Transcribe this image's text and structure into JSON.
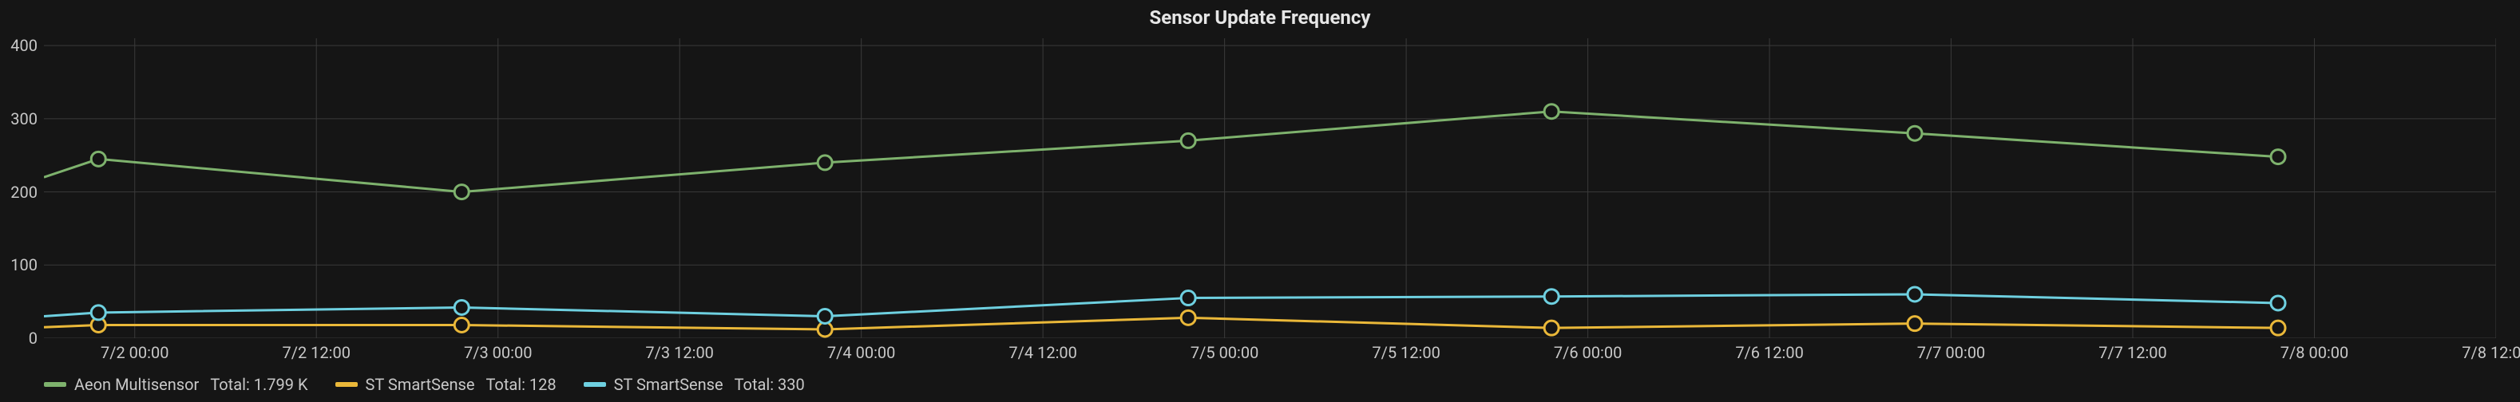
{
  "chart": {
    "type": "line",
    "title": "Sensor Update Frequency",
    "title_fontsize": 24,
    "title_fontweight": "700",
    "title_color": "#e6e6e6",
    "background_color": "#151515",
    "grid_color": "#3a3a3a",
    "grid_width": 1,
    "axis_label_color": "#c8c8c8",
    "axis_label_fontsize": 20,
    "line_width": 3,
    "marker_radius": 9,
    "marker_stroke_width": 3,
    "marker_fill": "#151515",
    "x_axis": {
      "min": 0,
      "max": 13.5,
      "ticks": [
        0.5,
        1.5,
        2.5,
        3.5,
        4.5,
        5.5,
        6.5,
        7.5,
        8.5,
        9.5,
        10.5,
        11.5,
        12.5,
        13.5
      ],
      "tick_labels": [
        "7/2 00:00",
        "7/2 12:00",
        "7/3 00:00",
        "7/3 12:00",
        "7/4 00:00",
        "7/4 12:00",
        "7/5 00:00",
        "7/5 12:00",
        "7/6 00:00",
        "7/6 12:00",
        "7/7 00:00",
        "7/7 12:00",
        "7/8 00:00",
        "7/8 12:00"
      ]
    },
    "y_axis": {
      "min": 0,
      "max": 410,
      "ticks": [
        0,
        100,
        200,
        300,
        400
      ],
      "tick_labels": [
        "0",
        "100",
        "200",
        "300",
        "400"
      ]
    },
    "series": [
      {
        "name": "Aeon Multisensor",
        "color": "#7eb26d",
        "legend_label": "Aeon Multisensor",
        "legend_total_label": "Total: 1.799 K",
        "line_start": {
          "x": 0,
          "y": 220
        },
        "points": [
          {
            "x": 0.3,
            "y": 245
          },
          {
            "x": 2.3,
            "y": 200
          },
          {
            "x": 4.3,
            "y": 240
          },
          {
            "x": 6.3,
            "y": 270
          },
          {
            "x": 8.3,
            "y": 310
          },
          {
            "x": 10.3,
            "y": 280
          },
          {
            "x": 12.3,
            "y": 248
          }
        ]
      },
      {
        "name": "ST SmartSense",
        "color": "#eab839",
        "legend_label": "ST SmartSense",
        "legend_total_label": "Total: 128",
        "line_start": {
          "x": 0,
          "y": 15
        },
        "points": [
          {
            "x": 0.3,
            "y": 18
          },
          {
            "x": 2.3,
            "y": 18
          },
          {
            "x": 4.3,
            "y": 12
          },
          {
            "x": 6.3,
            "y": 28
          },
          {
            "x": 8.3,
            "y": 14
          },
          {
            "x": 10.3,
            "y": 20
          },
          {
            "x": 12.3,
            "y": 14
          }
        ]
      },
      {
        "name": "ST SmartSense 2",
        "color": "#6ed0e0",
        "legend_label": "ST SmartSense",
        "legend_total_label": "Total: 330",
        "line_start": {
          "x": 0,
          "y": 30
        },
        "points": [
          {
            "x": 0.3,
            "y": 35
          },
          {
            "x": 2.3,
            "y": 42
          },
          {
            "x": 4.3,
            "y": 30
          },
          {
            "x": 6.3,
            "y": 55
          },
          {
            "x": 8.3,
            "y": 57
          },
          {
            "x": 10.3,
            "y": 60
          },
          {
            "x": 12.3,
            "y": 48
          }
        ]
      }
    ]
  }
}
